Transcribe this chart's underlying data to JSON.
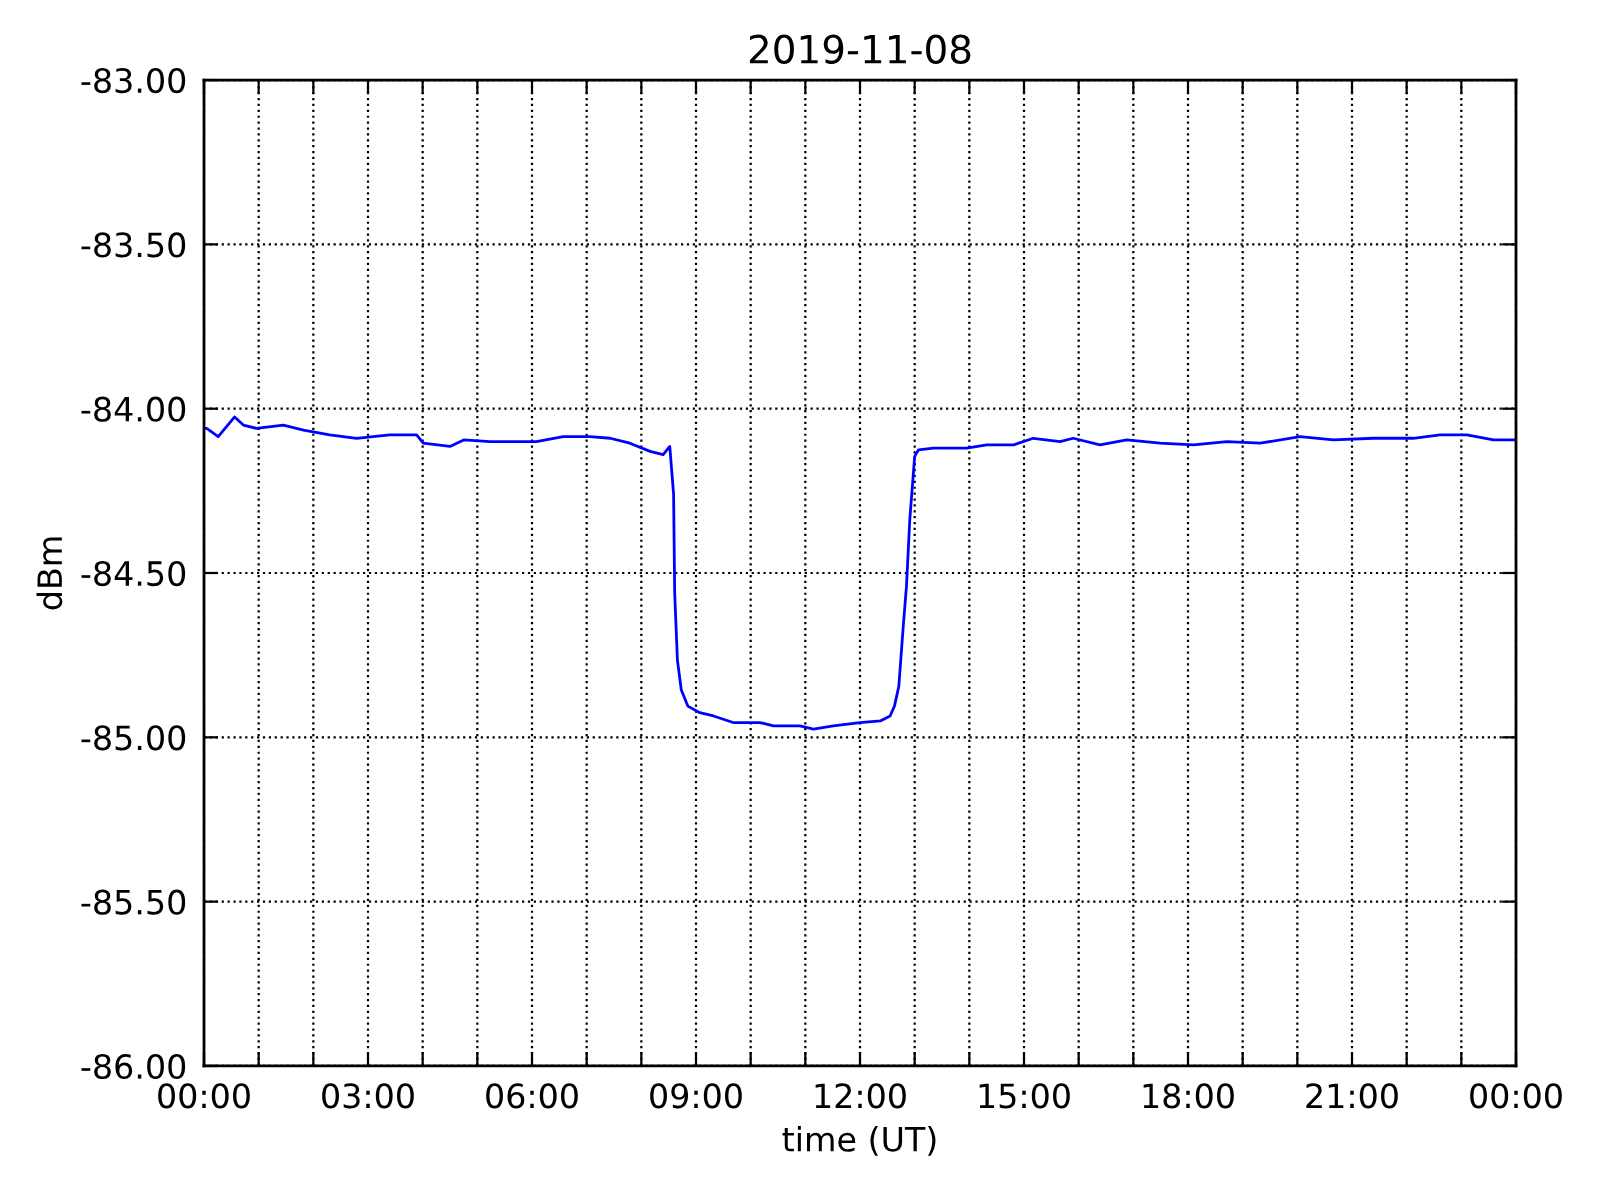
{
  "chart_data": {
    "type": "line",
    "title": "2019-11-08",
    "xlabel": "time (UT)",
    "ylabel": "dBm",
    "x": [
      0.0,
      0.05,
      0.26,
      0.56,
      0.72,
      0.96,
      1.45,
      1.82,
      2.3,
      2.79,
      3.4,
      3.89,
      4.01,
      4.5,
      4.75,
      5.23,
      6.08,
      6.57,
      7.06,
      7.43,
      7.79,
      8.16,
      8.4,
      8.52,
      8.59,
      8.61,
      8.66,
      8.73,
      8.85,
      9.07,
      9.32,
      9.68,
      10.17,
      10.42,
      10.9,
      11.15,
      11.51,
      12.0,
      12.37,
      12.55,
      12.63,
      12.71,
      12.79,
      12.85,
      12.91,
      13.0,
      13.07,
      13.34,
      13.95,
      14.32,
      14.81,
      15.17,
      15.66,
      15.9,
      16.39,
      16.88,
      17.49,
      18.1,
      18.71,
      19.32,
      20.05,
      20.66,
      21.39,
      22.12,
      22.61,
      23.1,
      23.59,
      23.95,
      24.0
    ],
    "series": [
      {
        "color": "#0000ff",
        "values": [
          -84.06,
          -84.06,
          -84.085,
          -84.025,
          -84.05,
          -84.06,
          -84.05,
          -84.065,
          -84.08,
          -84.09,
          -84.08,
          -84.08,
          -84.105,
          -84.115,
          -84.095,
          -84.1,
          -84.1,
          -84.085,
          -84.085,
          -84.09,
          -84.105,
          -84.13,
          -84.14,
          -84.115,
          -84.26,
          -84.56,
          -84.765,
          -84.855,
          -84.905,
          -84.925,
          -84.935,
          -84.955,
          -84.955,
          -84.965,
          -84.965,
          -84.975,
          -84.965,
          -84.955,
          -84.95,
          -84.935,
          -84.905,
          -84.845,
          -84.665,
          -84.54,
          -84.34,
          -84.145,
          -84.125,
          -84.12,
          -84.12,
          -84.11,
          -84.11,
          -84.09,
          -84.1,
          -84.09,
          -84.11,
          -84.095,
          -84.105,
          -84.11,
          -84.1,
          -84.105,
          -84.085,
          -84.095,
          -84.09,
          -84.09,
          -84.08,
          -84.08,
          -84.095,
          -84.095,
          -84.095
        ]
      }
    ],
    "xlim": [
      0,
      24
    ],
    "xticks": [
      {
        "value": 0,
        "label": "00:00"
      },
      {
        "value": 1,
        "label": null
      },
      {
        "value": 2,
        "label": null
      },
      {
        "value": 3,
        "label": "03:00"
      },
      {
        "value": 4,
        "label": null
      },
      {
        "value": 5,
        "label": null
      },
      {
        "value": 6,
        "label": "06:00"
      },
      {
        "value": 7,
        "label": null
      },
      {
        "value": 8,
        "label": null
      },
      {
        "value": 9,
        "label": "09:00"
      },
      {
        "value": 10,
        "label": null
      },
      {
        "value": 11,
        "label": null
      },
      {
        "value": 12,
        "label": "12:00"
      },
      {
        "value": 13,
        "label": null
      },
      {
        "value": 14,
        "label": null
      },
      {
        "value": 15,
        "label": "15:00"
      },
      {
        "value": 16,
        "label": null
      },
      {
        "value": 17,
        "label": null
      },
      {
        "value": 18,
        "label": "18:00"
      },
      {
        "value": 19,
        "label": null
      },
      {
        "value": 20,
        "label": null
      },
      {
        "value": 21,
        "label": "21:00"
      },
      {
        "value": 22,
        "label": null
      },
      {
        "value": 23,
        "label": null
      },
      {
        "value": 24,
        "label": "00:00"
      }
    ],
    "ylim": [
      -86,
      -83
    ],
    "yticks": [
      {
        "value": -86,
        "label": "-86.00"
      },
      {
        "value": -85.5,
        "label": "-85.50"
      },
      {
        "value": -85,
        "label": "-85.00"
      },
      {
        "value": -84.5,
        "label": "-84.50"
      },
      {
        "value": -84,
        "label": "-84.00"
      },
      {
        "value": -83.5,
        "label": "-83.50"
      },
      {
        "value": -83,
        "label": "-83.00"
      }
    ],
    "grid": true
  }
}
